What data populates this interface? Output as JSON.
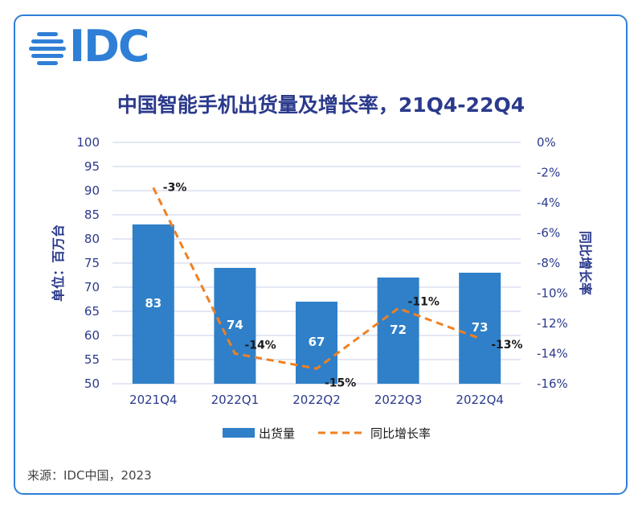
{
  "logo": {
    "text": "IDC"
  },
  "source": "来源：IDC中国，2023",
  "chart_data": {
    "type": "bar",
    "title": "中国智能手机出货量及增长率，21Q4-22Q4",
    "categories": [
      "2021Q4",
      "2022Q1",
      "2022Q2",
      "2022Q3",
      "2022Q4"
    ],
    "series": [
      {
        "name": "出货量",
        "type": "bar",
        "values": [
          83,
          74,
          67,
          72,
          73
        ],
        "color": "#2f80c8",
        "labels": [
          "83",
          "74",
          "67",
          "72",
          "73"
        ]
      },
      {
        "name": "同比增长率",
        "type": "line",
        "values": [
          -3,
          -14,
          -15,
          -11,
          -13
        ],
        "color": "#f08022",
        "labels": [
          "-3%",
          "-14%",
          "-15%",
          "-11%",
          "-13%"
        ]
      }
    ],
    "ylabel": "单位：百万台",
    "ylabel_right": "同比增长率",
    "ylim": [
      50,
      100
    ],
    "ylim_right": [
      -16,
      0
    ],
    "yticks": [
      "50",
      "55",
      "60",
      "65",
      "70",
      "75",
      "80",
      "85",
      "90",
      "95",
      "100"
    ],
    "yticks_right": [
      "-16%",
      "-14%",
      "-12%",
      "-10%",
      "-8%",
      "-6%",
      "-4%",
      "-2%",
      "0%"
    ],
    "grid": true,
    "legend": "bottom"
  }
}
